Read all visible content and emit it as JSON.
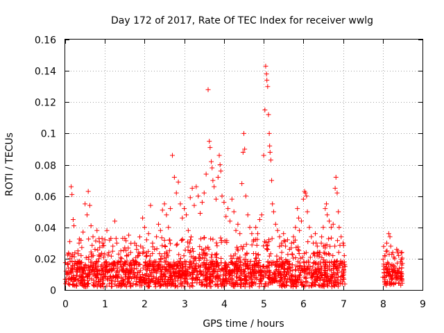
{
  "chart_data": {
    "type": "scatter",
    "title": "Day 172 of 2017, Rate Of TEC Index for receiver wwlg",
    "xlabel": "GPS time / hours",
    "ylabel": "ROTI / TECUs",
    "xlim": [
      0,
      9
    ],
    "ylim": [
      0,
      0.16
    ],
    "xticks": [
      0,
      1,
      2,
      3,
      4,
      5,
      6,
      7,
      8,
      9
    ],
    "xtick_labels": [
      "0",
      "1",
      "2",
      "3",
      "4",
      "5",
      "6",
      "7",
      "8",
      "9"
    ],
    "yticks": [
      0,
      0.02,
      0.04,
      0.06,
      0.08,
      0.1,
      0.12,
      0.14,
      0.16
    ],
    "ytick_labels": [
      "0",
      "0.02",
      "0.04",
      "0.06",
      "0.08",
      "0.1",
      "0.12",
      "0.14",
      "0.16"
    ],
    "grid": true,
    "marker": "+",
    "color": "#ff0000",
    "series": [
      {
        "name": "ROTI",
        "points": [
          [
            0.05,
            0.01
          ],
          [
            0.08,
            0.014
          ],
          [
            0.12,
            0.02
          ],
          [
            0.15,
            0.066
          ],
          [
            0.17,
            0.061
          ],
          [
            0.2,
            0.045
          ],
          [
            0.22,
            0.041
          ],
          [
            0.25,
            0.018
          ],
          [
            0.28,
            0.012
          ],
          [
            0.32,
            0.025
          ],
          [
            0.35,
            0.03
          ],
          [
            0.4,
            0.022
          ],
          [
            0.45,
            0.037
          ],
          [
            0.5,
            0.055
          ],
          [
            0.55,
            0.048
          ],
          [
            0.58,
            0.063
          ],
          [
            0.62,
            0.054
          ],
          [
            0.65,
            0.041
          ],
          [
            0.7,
            0.034
          ],
          [
            0.75,
            0.026
          ],
          [
            0.8,
            0.038
          ],
          [
            0.85,
            0.02
          ],
          [
            0.9,
            0.015
          ],
          [
            0.95,
            0.03
          ],
          [
            1.0,
            0.032
          ],
          [
            1.05,
            0.038
          ],
          [
            1.1,
            0.024
          ],
          [
            1.15,
            0.033
          ],
          [
            1.2,
            0.028
          ],
          [
            1.25,
            0.044
          ],
          [
            1.3,
            0.03
          ],
          [
            1.35,
            0.018
          ],
          [
            1.4,
            0.025
          ],
          [
            1.45,
            0.033
          ],
          [
            1.5,
            0.027
          ],
          [
            1.55,
            0.022
          ],
          [
            1.6,
            0.035
          ],
          [
            1.65,
            0.024
          ],
          [
            1.7,
            0.019
          ],
          [
            1.75,
            0.03
          ],
          [
            1.8,
            0.026
          ],
          [
            1.85,
            0.022
          ],
          [
            1.9,
            0.028
          ],
          [
            1.95,
            0.046
          ],
          [
            2.0,
            0.04
          ],
          [
            2.05,
            0.032
          ],
          [
            2.1,
            0.036
          ],
          [
            2.15,
            0.054
          ],
          [
            2.2,
            0.03
          ],
          [
            2.25,
            0.026
          ],
          [
            2.3,
            0.034
          ],
          [
            2.35,
            0.042
          ],
          [
            2.4,
            0.038
          ],
          [
            2.45,
            0.051
          ],
          [
            2.5,
            0.055
          ],
          [
            2.55,
            0.048
          ],
          [
            2.6,
            0.04
          ],
          [
            2.65,
            0.052
          ],
          [
            2.7,
            0.086
          ],
          [
            2.75,
            0.072
          ],
          [
            2.8,
            0.062
          ],
          [
            2.85,
            0.069
          ],
          [
            2.9,
            0.055
          ],
          [
            2.95,
            0.046
          ],
          [
            3.0,
            0.052
          ],
          [
            3.05,
            0.048
          ],
          [
            3.1,
            0.038
          ],
          [
            3.15,
            0.059
          ],
          [
            3.2,
            0.065
          ],
          [
            3.25,
            0.054
          ],
          [
            3.3,
            0.066
          ],
          [
            3.35,
            0.06
          ],
          [
            3.4,
            0.049
          ],
          [
            3.45,
            0.056
          ],
          [
            3.5,
            0.062
          ],
          [
            3.55,
            0.074
          ],
          [
            3.6,
            0.128
          ],
          [
            3.63,
            0.095
          ],
          [
            3.65,
            0.091
          ],
          [
            3.68,
            0.082
          ],
          [
            3.7,
            0.078
          ],
          [
            3.72,
            0.07
          ],
          [
            3.75,
            0.066
          ],
          [
            3.8,
            0.058
          ],
          [
            3.85,
            0.072
          ],
          [
            3.88,
            0.086
          ],
          [
            3.9,
            0.08
          ],
          [
            3.92,
            0.076
          ],
          [
            3.95,
            0.06
          ],
          [
            4.0,
            0.056
          ],
          [
            4.05,
            0.047
          ],
          [
            4.1,
            0.052
          ],
          [
            4.15,
            0.044
          ],
          [
            4.2,
            0.058
          ],
          [
            4.25,
            0.05
          ],
          [
            4.3,
            0.038
          ],
          [
            4.35,
            0.042
          ],
          [
            4.4,
            0.036
          ],
          [
            4.45,
            0.068
          ],
          [
            4.48,
            0.088
          ],
          [
            4.5,
            0.1
          ],
          [
            4.52,
            0.09
          ],
          [
            4.55,
            0.06
          ],
          [
            4.6,
            0.048
          ],
          [
            4.65,
            0.04
          ],
          [
            4.7,
            0.036
          ],
          [
            4.75,
            0.032
          ],
          [
            4.8,
            0.04
          ],
          [
            4.85,
            0.036
          ],
          [
            4.9,
            0.045
          ],
          [
            4.95,
            0.048
          ],
          [
            5.0,
            0.086
          ],
          [
            5.03,
            0.115
          ],
          [
            5.05,
            0.143
          ],
          [
            5.07,
            0.138
          ],
          [
            5.08,
            0.134
          ],
          [
            5.1,
            0.13
          ],
          [
            5.12,
            0.112
          ],
          [
            5.14,
            0.1
          ],
          [
            5.15,
            0.092
          ],
          [
            5.16,
            0.088
          ],
          [
            5.18,
            0.083
          ],
          [
            5.2,
            0.07
          ],
          [
            5.22,
            0.055
          ],
          [
            5.25,
            0.05
          ],
          [
            5.3,
            0.042
          ],
          [
            5.35,
            0.038
          ],
          [
            5.4,
            0.034
          ],
          [
            5.45,
            0.03
          ],
          [
            5.5,
            0.036
          ],
          [
            5.55,
            0.028
          ],
          [
            5.6,
            0.032
          ],
          [
            5.65,
            0.026
          ],
          [
            5.7,
            0.03
          ],
          [
            5.75,
            0.034
          ],
          [
            5.8,
            0.04
          ],
          [
            5.85,
            0.052
          ],
          [
            5.88,
            0.046
          ],
          [
            5.9,
            0.038
          ],
          [
            5.95,
            0.044
          ],
          [
            6.0,
            0.058
          ],
          [
            6.03,
            0.063
          ],
          [
            6.05,
            0.062
          ],
          [
            6.08,
            0.06
          ],
          [
            6.1,
            0.05
          ],
          [
            6.15,
            0.04
          ],
          [
            6.2,
            0.034
          ],
          [
            6.25,
            0.03
          ],
          [
            6.3,
            0.036
          ],
          [
            6.35,
            0.028
          ],
          [
            6.4,
            0.024
          ],
          [
            6.45,
            0.03
          ],
          [
            6.5,
            0.04
          ],
          [
            6.55,
            0.052
          ],
          [
            6.58,
            0.055
          ],
          [
            6.6,
            0.048
          ],
          [
            6.65,
            0.044
          ],
          [
            6.7,
            0.04
          ],
          [
            6.75,
            0.042
          ],
          [
            6.8,
            0.065
          ],
          [
            6.82,
            0.072
          ],
          [
            6.85,
            0.062
          ],
          [
            6.88,
            0.05
          ],
          [
            6.9,
            0.04
          ],
          [
            6.95,
            0.034
          ],
          [
            7.0,
            0.03
          ],
          [
            7.03,
            0.022
          ],
          [
            7.05,
            0.015
          ],
          [
            8.05,
            0.022
          ],
          [
            8.1,
            0.03
          ],
          [
            8.15,
            0.036
          ],
          [
            8.18,
            0.034
          ],
          [
            8.2,
            0.028
          ],
          [
            8.25,
            0.024
          ],
          [
            8.3,
            0.02
          ],
          [
            8.35,
            0.026
          ],
          [
            8.4,
            0.022
          ],
          [
            8.45,
            0.018
          ],
          [
            8.48,
            0.024
          ]
        ],
        "dense_bands": [
          {
            "x": [
              0.0,
              7.05
            ],
            "y_range": [
              0.002,
              0.024
            ],
            "points_per_hour": 260,
            "peak_y_range": [
              0.02,
              0.034
            ]
          },
          {
            "x": [
              8.0,
              8.5
            ],
            "y_range": [
              0.003,
              0.022
            ],
            "points_per_hour": 240,
            "peak_y_range": [
              0.018,
              0.028
            ]
          }
        ]
      }
    ]
  }
}
